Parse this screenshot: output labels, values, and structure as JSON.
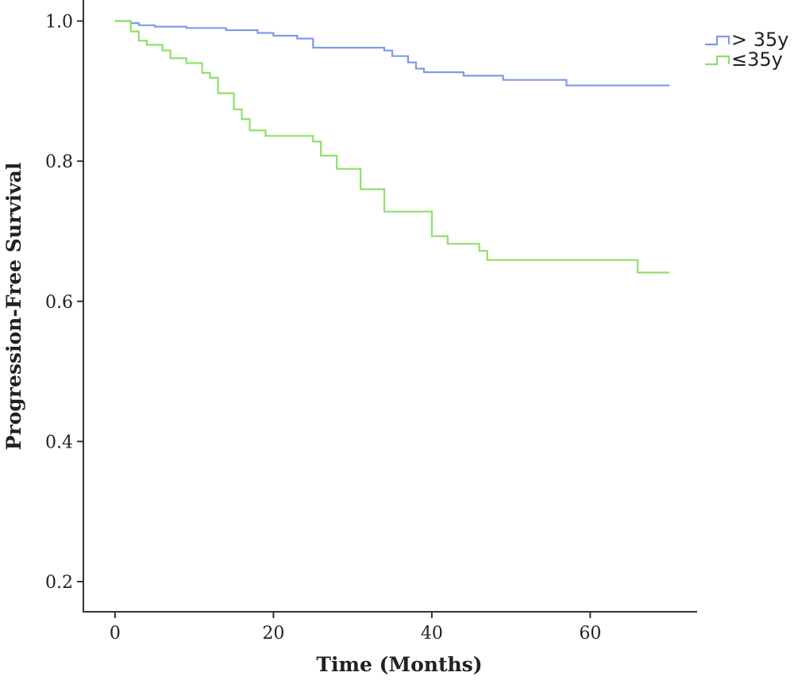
{
  "chart_data": {
    "type": "line",
    "step": true,
    "xlabel": "Time (Months)",
    "ylabel": "Progression-Free Survival",
    "xlim": [
      -4,
      73.5
    ],
    "ylim": [
      0.157,
      1.03
    ],
    "xticks": [
      0,
      20,
      40,
      60
    ],
    "yticks": [
      0.2,
      0.4,
      0.6,
      0.8,
      1.0
    ],
    "xtick_labels": [
      "0",
      "20",
      "40",
      "60"
    ],
    "ytick_labels": [
      "0.2",
      "0.4",
      "0.6",
      "0.8",
      "1.0"
    ],
    "grid": false,
    "legend": {
      "position": "top-right"
    },
    "series": [
      {
        "name": "> 35y",
        "color": "#7f9be6",
        "x": [
          0,
          2,
          3,
          5,
          9,
          14,
          18,
          20,
          23,
          25,
          28,
          34,
          35,
          37,
          38,
          39,
          44,
          49,
          57,
          70
        ],
        "y": [
          1.0,
          0.997,
          0.994,
          0.992,
          0.99,
          0.987,
          0.983,
          0.979,
          0.975,
          0.962,
          0.962,
          0.958,
          0.95,
          0.941,
          0.932,
          0.927,
          0.922,
          0.916,
          0.908,
          0.908
        ]
      },
      {
        "name": "≤35y",
        "color": "#8ee06a",
        "x": [
          0,
          2,
          3,
          4,
          6,
          7,
          9,
          11,
          12,
          13,
          15,
          16,
          17,
          19,
          25,
          26,
          28,
          31,
          34,
          40,
          42,
          46,
          47,
          66,
          70
        ],
        "y": [
          1.0,
          0.985,
          0.972,
          0.966,
          0.958,
          0.947,
          0.94,
          0.926,
          0.919,
          0.897,
          0.874,
          0.86,
          0.844,
          0.836,
          0.828,
          0.808,
          0.789,
          0.76,
          0.728,
          0.693,
          0.682,
          0.672,
          0.659,
          0.641,
          0.641
        ]
      }
    ]
  }
}
